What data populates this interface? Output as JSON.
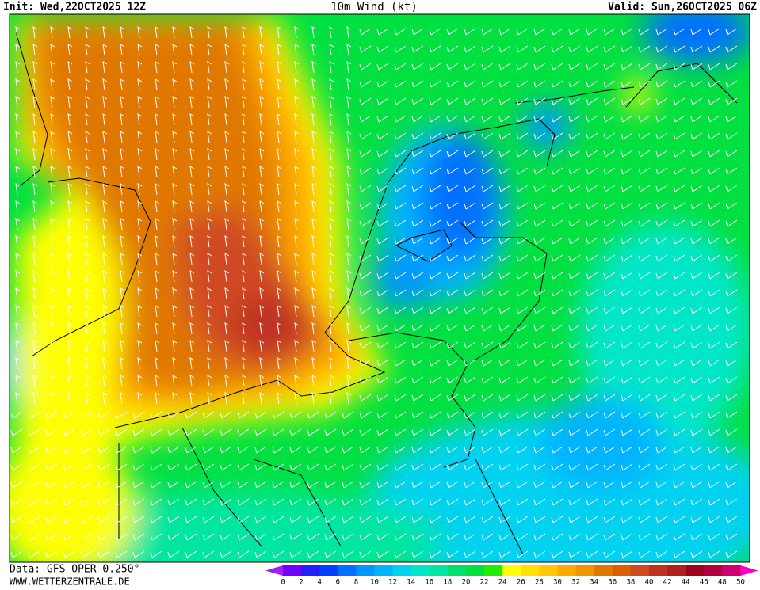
{
  "header": {
    "init": "Init: Wed,22OCT2025 12Z",
    "title": "10m Wind (kt)",
    "valid": "Valid: Sun,26OCT2025 06Z"
  },
  "footer": {
    "source": "Data: GFS OPER 0.250°",
    "website": "WWW.WETTERZENTRALE.DE"
  },
  "colorbar": {
    "labels": [
      0,
      2,
      4,
      6,
      8,
      10,
      12,
      14,
      16,
      18,
      20,
      22,
      24,
      26,
      28,
      30,
      32,
      34,
      36,
      38,
      40,
      42,
      44,
      46,
      48,
      50
    ],
    "colors": [
      "#7000ff",
      "#2020ff",
      "#0040ff",
      "#0070ff",
      "#0096ff",
      "#00b4ff",
      "#00d2f0",
      "#00e6c8",
      "#00e6a0",
      "#00e070",
      "#00e040",
      "#20f000",
      "#ffff00",
      "#ffe000",
      "#ffc800",
      "#ffaa00",
      "#f09600",
      "#e07800",
      "#d86000",
      "#d04820",
      "#c03020",
      "#b02020",
      "#a00020",
      "#b00040",
      "#d00070"
    ],
    "under_color": "#a020f0",
    "over_color": "#ff00c0"
  }
}
